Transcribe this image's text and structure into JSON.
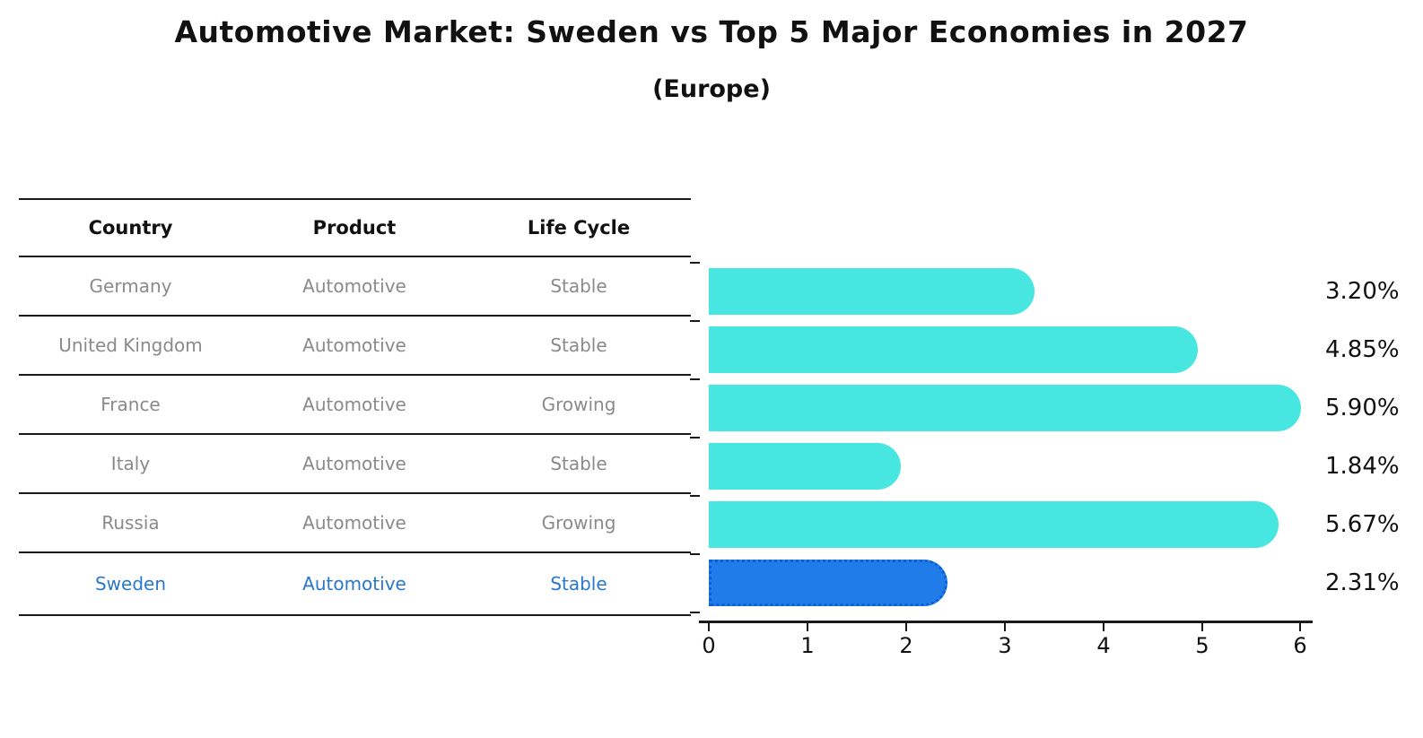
{
  "title": "Automotive Market: Sweden vs Top 5 Major Economies in 2027",
  "subtitle": "(Europe)",
  "table": {
    "headers": [
      "Country",
      "Product",
      "Life Cycle"
    ],
    "rows": [
      {
        "country": "Germany",
        "product": "Automotive",
        "life_cycle": "Stable",
        "highlight": false
      },
      {
        "country": "United Kingdom",
        "product": "Automotive",
        "life_cycle": "Stable",
        "highlight": false
      },
      {
        "country": "France",
        "product": "Automotive",
        "life_cycle": "Growing",
        "highlight": false
      },
      {
        "country": "Italy",
        "product": "Automotive",
        "life_cycle": "Stable",
        "highlight": false
      },
      {
        "country": "Russia",
        "product": "Automotive",
        "life_cycle": "Growing",
        "highlight": false
      },
      {
        "country": "Sweden",
        "product": "Automotive",
        "life_cycle": "Stable",
        "highlight": true
      }
    ]
  },
  "chart_data": {
    "type": "bar",
    "orientation": "horizontal",
    "title": "Automotive Market: Sweden vs Top 5 Major Economies in 2027",
    "subtitle": "(Europe)",
    "categories": [
      "Germany",
      "United Kingdom",
      "France",
      "Italy",
      "Russia",
      "Sweden"
    ],
    "values": [
      3.2,
      4.85,
      5.9,
      1.84,
      5.67,
      2.31
    ],
    "labels": [
      "3.20%",
      "4.85%",
      "5.90%",
      "1.84%",
      "5.67%",
      "2.31%"
    ],
    "highlight_index": 5,
    "xlim": [
      0,
      6.2
    ],
    "xticks": [
      "0",
      "1",
      "2",
      "3",
      "4",
      "5",
      "6"
    ],
    "grid": false,
    "legend": "none"
  },
  "colors": {
    "background": "#ffffff",
    "bar": "#47e6e1",
    "highlight-bar": "#1f7ce8",
    "highlight-border": "#0d5fd6",
    "highlight-text": "#2878cd",
    "row-text": "#8a8a8a",
    "header-text": "#111111",
    "label-text": "#111111",
    "line": "#1a1a1a"
  }
}
